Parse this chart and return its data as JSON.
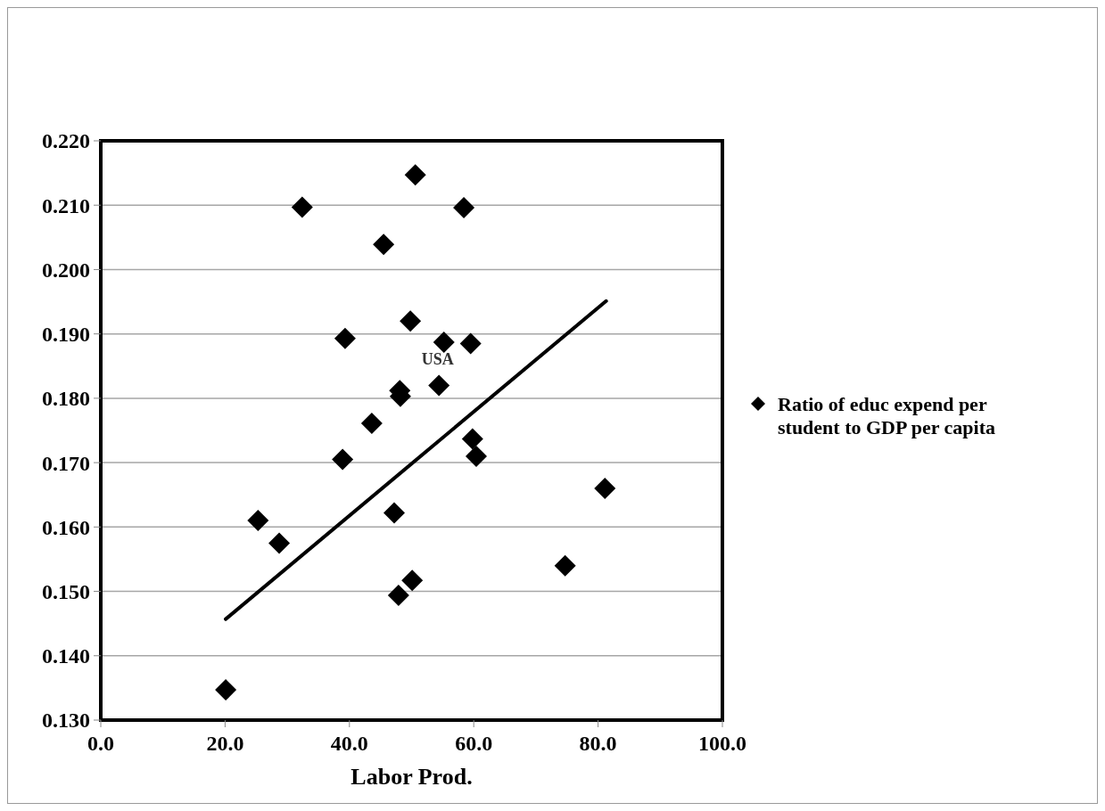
{
  "chart_data": {
    "type": "scatter",
    "xlabel": "Labor Prod.",
    "xlim": [
      0,
      100
    ],
    "xticks": [
      {
        "value": 0,
        "label": "0.0"
      },
      {
        "value": 20,
        "label": "20.0"
      },
      {
        "value": 40,
        "label": "40.0"
      },
      {
        "value": 60,
        "label": "60.0"
      },
      {
        "value": 80,
        "label": "80.0"
      },
      {
        "value": 100,
        "label": "100.0"
      }
    ],
    "ylim": [
      0.13,
      0.22
    ],
    "yticks": [
      {
        "value": 0.13,
        "label": "0.130"
      },
      {
        "value": 0.14,
        "label": "0.140"
      },
      {
        "value": 0.15,
        "label": "0.150"
      },
      {
        "value": 0.16,
        "label": "0.160"
      },
      {
        "value": 0.17,
        "label": "0.170"
      },
      {
        "value": 0.18,
        "label": "0.180"
      },
      {
        "value": 0.19,
        "label": "0.190"
      },
      {
        "value": 0.2,
        "label": "0.200"
      },
      {
        "value": 0.21,
        "label": "0.210"
      },
      {
        "value": 0.22,
        "label": "0.220"
      }
    ],
    "grid": "y",
    "legend": "right",
    "annotations": [
      {
        "text": "USA",
        "x": 55.2,
        "y": 0.1887
      }
    ],
    "series": [
      {
        "name": "Ratio of educ expend per student to GDP per capita",
        "color": "#000000",
        "marker": "diamond",
        "x": [
          50.6,
          32.4,
          58.4,
          45.5,
          49.8,
          39.3,
          55.2,
          59.5,
          54.4,
          48.1,
          48.2,
          43.6,
          38.9,
          59.8,
          60.4,
          81.1,
          25.3,
          28.7,
          47.2,
          50.1,
          47.9,
          74.7,
          20.1
        ],
        "values": [
          0.2147,
          0.2097,
          0.2096,
          0.2039,
          0.192,
          0.1893,
          0.1887,
          0.1885,
          0.182,
          0.1812,
          0.1803,
          0.1761,
          0.1705,
          0.1737,
          0.171,
          0.166,
          0.161,
          0.1575,
          0.1622,
          0.1517,
          0.1494,
          0.154,
          0.1347
        ]
      },
      {
        "type": "line",
        "color": "#000000",
        "x": [
          20.1,
          81.3
        ],
        "values": [
          0.1457,
          0.1951
        ]
      }
    ]
  }
}
